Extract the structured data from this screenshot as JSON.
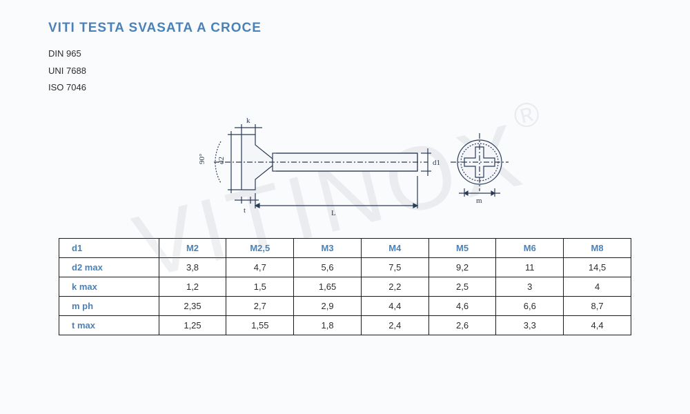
{
  "title": "VITI TESTA SVASATA A CROCE",
  "standards": [
    "DIN 965",
    "UNI 7688",
    "ISO 7046"
  ],
  "watermark": {
    "text": "VITINOX",
    "symbol": "®"
  },
  "diagram": {
    "labels": {
      "k": "k",
      "d2": "d2",
      "d1": "d1",
      "angle": "90°",
      "t": "t",
      "L": "L",
      "m": "m"
    },
    "stroke_color": "#2a3a55"
  },
  "table": {
    "header_color": "#4a82b8",
    "border_color": "#1a1a1a",
    "columns": [
      "d1",
      "M2",
      "M2,5",
      "M3",
      "M4",
      "M5",
      "M6",
      "M8"
    ],
    "rows": [
      {
        "label": "d2 max",
        "values": [
          "3,8",
          "4,7",
          "5,6",
          "7,5",
          "9,2",
          "11",
          "14,5"
        ]
      },
      {
        "label": "k max",
        "values": [
          "1,2",
          "1,5",
          "1,65",
          "2,2",
          "2,5",
          "3",
          "4"
        ]
      },
      {
        "label": "m ph",
        "values": [
          "2,35",
          "2,7",
          "2,9",
          "4,4",
          "4,6",
          "6,6",
          "8,7"
        ]
      },
      {
        "label": "t max",
        "values": [
          "1,25",
          "1,55",
          "1,8",
          "2,4",
          "2,6",
          "3,3",
          "4,4"
        ]
      }
    ]
  }
}
